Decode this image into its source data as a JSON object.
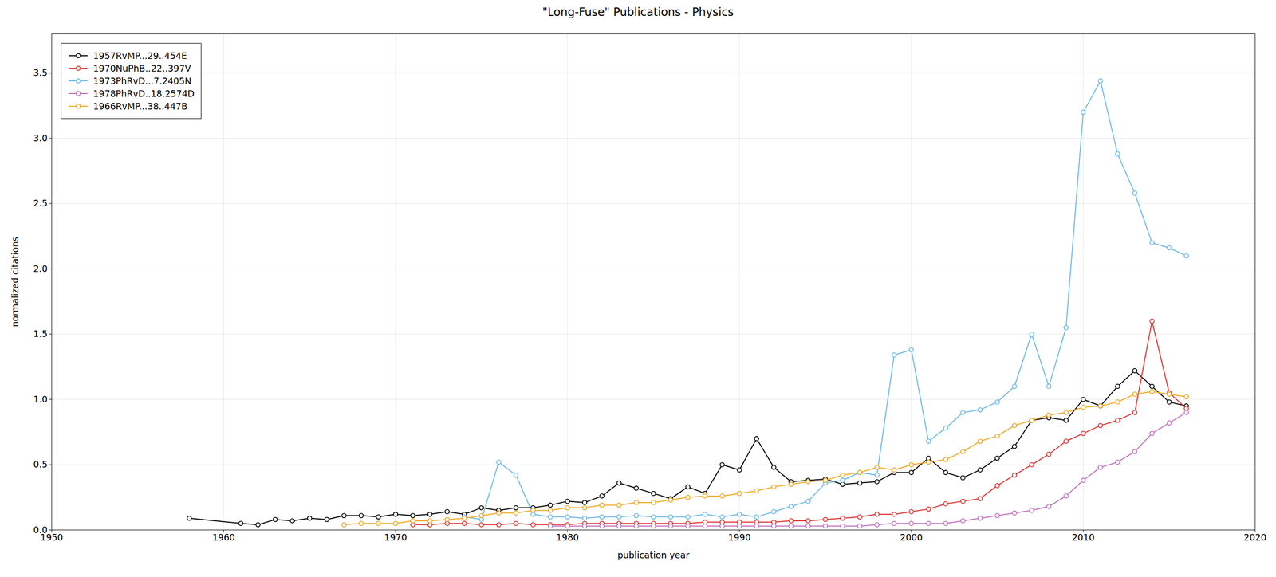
{
  "chart_data": {
    "type": "line",
    "title": "\"Long-Fuse\" Publications - Physics",
    "xlabel": "publication year",
    "ylabel": "normalized citations",
    "xlim": [
      1950,
      2020
    ],
    "ylim": [
      0,
      3.8
    ],
    "xticks": [
      1950,
      1960,
      1970,
      1980,
      1990,
      2000,
      2010,
      2020
    ],
    "yticks": [
      {
        "value": 0,
        "label": "0.0"
      },
      0.5,
      {
        "value": 1,
        "label": "1.0"
      },
      1.5,
      {
        "value": 2,
        "label": "2.0"
      },
      2.5,
      {
        "value": 3,
        "label": "3.0"
      },
      3.5
    ],
    "grid": true,
    "legend": "top-left",
    "marker": "circle",
    "series": [
      {
        "name": "1957RvMP...29..454E",
        "color": "#000000",
        "x": [
          1958,
          1961,
          1962,
          1963,
          1964,
          1965,
          1966,
          1967,
          1968,
          1969,
          1970,
          1971,
          1972,
          1973,
          1974,
          1975,
          1976,
          1977,
          1978,
          1979,
          1980,
          1981,
          1982,
          1983,
          1984,
          1985,
          1986,
          1987,
          1988,
          1989,
          1990,
          1991,
          1992,
          1993,
          1994,
          1995,
          1996,
          1997,
          1998,
          1999,
          2000,
          2001,
          2002,
          2003,
          2004,
          2005,
          2006,
          2007,
          2008,
          2009,
          2010,
          2011,
          2012,
          2013,
          2014,
          2015,
          2016
        ],
        "values": [
          0.09,
          0.05,
          0.04,
          0.08,
          0.07,
          0.09,
          0.08,
          0.11,
          0.11,
          0.1,
          0.12,
          0.11,
          0.12,
          0.14,
          0.12,
          0.17,
          0.15,
          0.17,
          0.17,
          0.19,
          0.22,
          0.21,
          0.26,
          0.36,
          0.32,
          0.28,
          0.24,
          0.33,
          0.28,
          0.5,
          0.46,
          0.7,
          0.48,
          0.37,
          0.38,
          0.39,
          0.35,
          0.36,
          0.37,
          0.44,
          0.44,
          0.55,
          0.44,
          0.4,
          0.46,
          0.55,
          0.64,
          0.84,
          0.86,
          0.84,
          1.0,
          0.95,
          1.1,
          1.22,
          1.1,
          0.98,
          0.95
        ]
      },
      {
        "name": "1970NuPhB..22..397V",
        "color": "#e03030",
        "x": [
          1971,
          1972,
          1973,
          1974,
          1975,
          1976,
          1977,
          1978,
          1979,
          1980,
          1981,
          1982,
          1983,
          1984,
          1985,
          1986,
          1987,
          1988,
          1989,
          1990,
          1991,
          1992,
          1993,
          1994,
          1995,
          1996,
          1997,
          1998,
          1999,
          2000,
          2001,
          2002,
          2003,
          2004,
          2005,
          2006,
          2007,
          2008,
          2009,
          2010,
          2011,
          2012,
          2013,
          2014,
          2015,
          2016
        ],
        "values": [
          0.04,
          0.04,
          0.05,
          0.05,
          0.04,
          0.04,
          0.05,
          0.04,
          0.04,
          0.04,
          0.05,
          0.05,
          0.05,
          0.05,
          0.05,
          0.05,
          0.05,
          0.06,
          0.06,
          0.06,
          0.06,
          0.06,
          0.07,
          0.07,
          0.08,
          0.09,
          0.1,
          0.12,
          0.12,
          0.14,
          0.16,
          0.2,
          0.22,
          0.24,
          0.34,
          0.42,
          0.5,
          0.58,
          0.68,
          0.74,
          0.8,
          0.84,
          0.9,
          1.6,
          1.05,
          0.93
        ]
      },
      {
        "name": "1973PhRvD...7.2405N",
        "color": "#6bb8e8",
        "x": [
          1974,
          1975,
          1976,
          1977,
          1978,
          1979,
          1980,
          1981,
          1982,
          1983,
          1984,
          1985,
          1986,
          1987,
          1988,
          1989,
          1990,
          1991,
          1992,
          1993,
          1994,
          1995,
          1996,
          1997,
          1998,
          1999,
          2000,
          2001,
          2002,
          2003,
          2004,
          2005,
          2006,
          2007,
          2008,
          2009,
          2010,
          2011,
          2012,
          2013,
          2014,
          2015,
          2016
        ],
        "values": [
          0.1,
          0.08,
          0.52,
          0.42,
          0.12,
          0.1,
          0.1,
          0.09,
          0.1,
          0.1,
          0.11,
          0.1,
          0.1,
          0.1,
          0.12,
          0.1,
          0.12,
          0.1,
          0.14,
          0.18,
          0.22,
          0.36,
          0.38,
          0.44,
          0.42,
          1.34,
          1.38,
          0.68,
          0.78,
          0.9,
          0.92,
          0.98,
          1.1,
          1.5,
          1.1,
          1.55,
          3.2,
          3.44,
          2.88,
          2.58,
          2.2,
          2.16,
          2.1
        ]
      },
      {
        "name": "1978PhRvD..18.2574D",
        "color": "#c070c0",
        "x": [
          1979,
          1980,
          1981,
          1982,
          1983,
          1984,
          1985,
          1986,
          1987,
          1988,
          1989,
          1990,
          1991,
          1992,
          1993,
          1994,
          1995,
          1996,
          1997,
          1998,
          1999,
          2000,
          2001,
          2002,
          2003,
          2004,
          2005,
          2006,
          2007,
          2008,
          2009,
          2010,
          2011,
          2012,
          2013,
          2014,
          2015,
          2016
        ],
        "values": [
          0.03,
          0.03,
          0.03,
          0.03,
          0.03,
          0.03,
          0.03,
          0.03,
          0.03,
          0.03,
          0.03,
          0.03,
          0.03,
          0.03,
          0.03,
          0.03,
          0.03,
          0.03,
          0.03,
          0.04,
          0.05,
          0.05,
          0.05,
          0.05,
          0.07,
          0.09,
          0.11,
          0.13,
          0.15,
          0.18,
          0.26,
          0.38,
          0.48,
          0.52,
          0.6,
          0.74,
          0.82,
          0.9
        ]
      },
      {
        "name": "1966RvMP...38..447B",
        "color": "#f0a820",
        "x": [
          1967,
          1968,
          1969,
          1970,
          1971,
          1972,
          1973,
          1974,
          1975,
          1976,
          1977,
          1978,
          1979,
          1980,
          1981,
          1982,
          1983,
          1984,
          1985,
          1986,
          1987,
          1988,
          1989,
          1990,
          1991,
          1992,
          1993,
          1994,
          1995,
          1996,
          1997,
          1998,
          1999,
          2000,
          2001,
          2002,
          2003,
          2004,
          2005,
          2006,
          2007,
          2008,
          2009,
          2010,
          2011,
          2012,
          2013,
          2014,
          2015,
          2016
        ],
        "values": [
          0.04,
          0.05,
          0.05,
          0.05,
          0.07,
          0.07,
          0.08,
          0.09,
          0.11,
          0.13,
          0.13,
          0.15,
          0.15,
          0.17,
          0.17,
          0.19,
          0.19,
          0.21,
          0.21,
          0.23,
          0.25,
          0.26,
          0.26,
          0.28,
          0.3,
          0.33,
          0.35,
          0.37,
          0.38,
          0.42,
          0.44,
          0.48,
          0.46,
          0.5,
          0.52,
          0.54,
          0.6,
          0.68,
          0.72,
          0.8,
          0.84,
          0.88,
          0.9,
          0.94,
          0.95,
          0.98,
          1.04,
          1.06,
          1.04,
          1.02
        ]
      }
    ]
  }
}
